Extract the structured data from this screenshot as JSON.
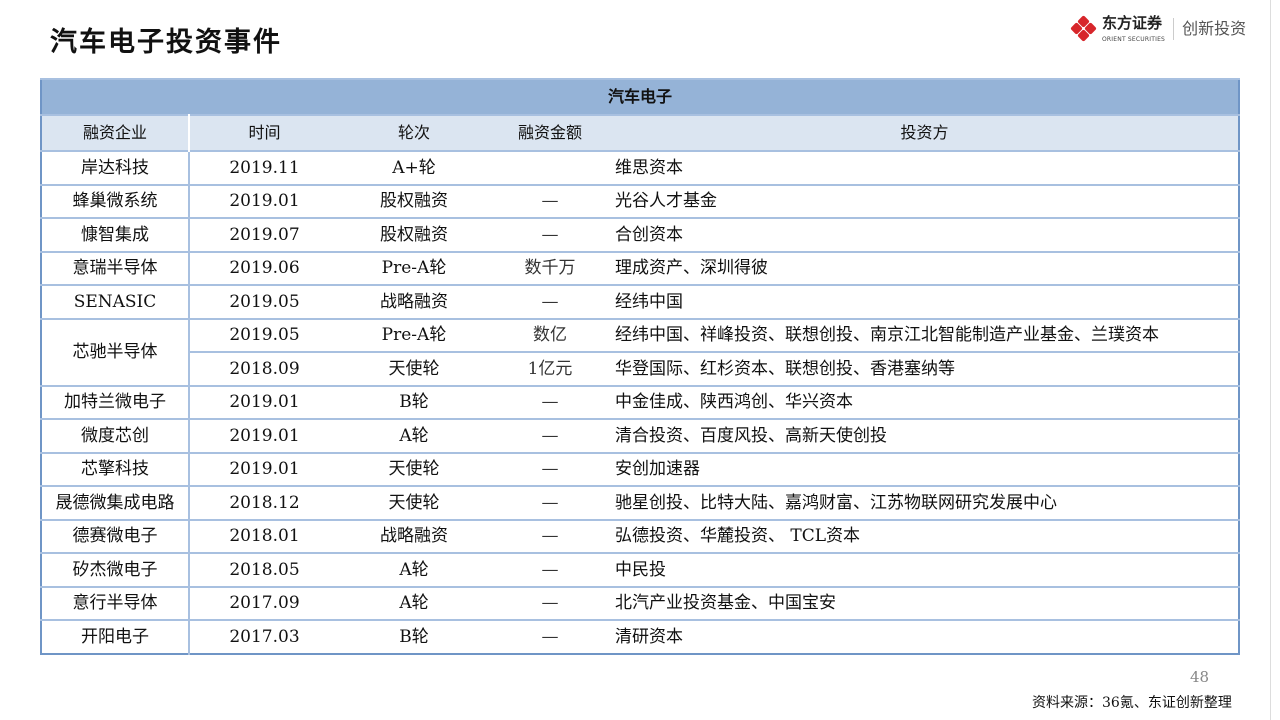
{
  "title": "汽车电子投资事件",
  "logo": {
    "cn": "东方证券",
    "en": "ORIENT SECURITIES",
    "sub": "创新投资",
    "color": "#d7262b"
  },
  "table": {
    "section": "汽车电子",
    "headers": [
      "融资企业",
      "时间",
      "轮次",
      "融资金额",
      "投资方"
    ],
    "rows": [
      {
        "company": "岸达科技",
        "date": "2019.11",
        "round": "A+轮",
        "amount": "",
        "investors": "维思资本"
      },
      {
        "company": "蜂巢微系统",
        "date": "2019.01",
        "round": "股权融资",
        "amount": "—",
        "investors": "光谷人才基金"
      },
      {
        "company": "慷智集成",
        "date": "2019.07",
        "round": "股权融资",
        "amount": "—",
        "investors": "合创资本"
      },
      {
        "company": "意瑞半导体",
        "date": "2019.06",
        "round": "Pre-A轮",
        "amount": "数千万",
        "investors": "理成资产、深圳得彼"
      },
      {
        "company": "SENASIC",
        "date": "2019.05",
        "round": "战略融资",
        "amount": "—",
        "investors": "经纬中国"
      },
      {
        "company": "芯驰半导体",
        "date": "2019.05",
        "round": "Pre-A轮",
        "amount": "数亿",
        "investors": "经纬中国、祥峰投资、联想创投、南京江北智能制造产业基金、兰璞资本",
        "rowspan": 2
      },
      {
        "company": "",
        "date": "2018.09",
        "round": "天使轮",
        "amount": "1亿元",
        "investors": "华登国际、红杉资本、联想创投、香港塞纳等",
        "merged": true
      },
      {
        "company": "加特兰微电子",
        "date": "2019.01",
        "round": "B轮",
        "amount": "—",
        "investors": "中金佳成、陕西鸿创、华兴资本"
      },
      {
        "company": "微度芯创",
        "date": "2019.01",
        "round": "A轮",
        "amount": "—",
        "investors": "清合投资、百度风投、高新天使创投"
      },
      {
        "company": "芯擎科技",
        "date": "2019.01",
        "round": "天使轮",
        "amount": "—",
        "investors": "安创加速器"
      },
      {
        "company": "晟德微集成电路",
        "date": "2018.12",
        "round": "天使轮",
        "amount": "—",
        "investors": "驰星创投、比特大陆、嘉鸿财富、江苏物联网研究发展中心"
      },
      {
        "company": "德赛微电子",
        "date": "2018.01",
        "round": "战略融资",
        "amount": "—",
        "investors": "弘德投资、华麓投资、 TCL资本"
      },
      {
        "company": "矽杰微电子",
        "date": "2018.05",
        "round": "A轮",
        "amount": "—",
        "investors": "中民投"
      },
      {
        "company": "意行半导体",
        "date": "2017.09",
        "round": "A轮",
        "amount": "—",
        "investors": "北汽产业投资基金、中国宝安"
      },
      {
        "company": "开阳电子",
        "date": "2017.03",
        "round": "B轮",
        "amount": "—",
        "investors": "清研资本"
      }
    ]
  },
  "page_number": "48",
  "source": "资料来源：36氪、东证创新整理"
}
